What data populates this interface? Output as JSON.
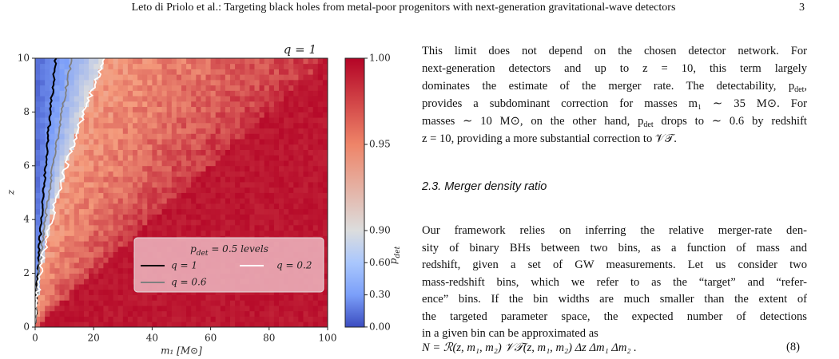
{
  "header": {
    "title": "Leto di Priolo et al.: Targeting black holes from metal-poor progenitors with next-generation gravitational-wave detectors",
    "page": "3"
  },
  "figure": {
    "title": "q = 1",
    "xlabel": "m₁ [M⊙]",
    "ylabel": "z",
    "xlim": [
      0,
      100
    ],
    "ylim": [
      0,
      10
    ],
    "xticks": [
      0,
      20,
      40,
      60,
      80,
      100
    ],
    "yticks": [
      0,
      2,
      4,
      6,
      8,
      10
    ],
    "colorbar": {
      "label": [
        "p",
        {
          "sub": "det"
        }
      ],
      "ticks": [
        {
          "value": 1,
          "label": "1.00"
        },
        {
          "value": 0.95,
          "label": "0.95"
        },
        {
          "value": 0.9,
          "label": "0.90"
        },
        {
          "value": 0.6,
          "label": "0.60"
        },
        {
          "value": 0.3,
          "label": "0.30"
        },
        {
          "value": 0,
          "label": "0.00"
        }
      ]
    },
    "legend": {
      "title": [
        "p",
        {
          "sub": "det"
        },
        " = 0.5 levels"
      ],
      "entries": [
        {
          "label": "q = 1",
          "color": "#000000"
        },
        {
          "label": "q = 0.6",
          "color": "#808080"
        },
        {
          "label": "q = 0.2",
          "color": "#ffffff"
        }
      ]
    }
  },
  "body": {
    "paragraph1": [
      "This limit does not depend on the chosen detector network. For",
      "next-generation detectors and up to z = 10, this term largely",
      [
        "dominates the estimate of the merger rate. The detectability, p",
        {
          "sub": "det"
        },
        ","
      ],
      "provides a subdominant correction for masses m₁ ∼ 35 M⊙. For",
      [
        "masses ∼ 10 M⊙, on the other hand, p",
        {
          "sub": "det"
        },
        " drops to ∼ 0.6 by redshift"
      ],
      "z = 10, providing a more substantial correction to 𝒱𝒯."
    ],
    "heading": "2.3. Merger density ratio",
    "paragraph2": [
      "Our framework relies on inferring the relative merger-rate den-",
      "sity of binary BHs between two bins, as a function of mass and",
      "redshift, given a set of GW measurements. Let us consider two",
      "mass-redshift bins, which we refer to as the “target” and “refer-",
      "ence” bins. If the bin widths are much smaller than the extent of",
      "the targeted parameter space, the expected number of detections",
      "in a given bin can be approximated as"
    ],
    "equation": {
      "text": "N = ℛ(z, m₁, m₂) 𝒱𝒯(z, m₁, m₂) Δz Δm₁ Δm₂ .",
      "number": "(8)"
    }
  }
}
